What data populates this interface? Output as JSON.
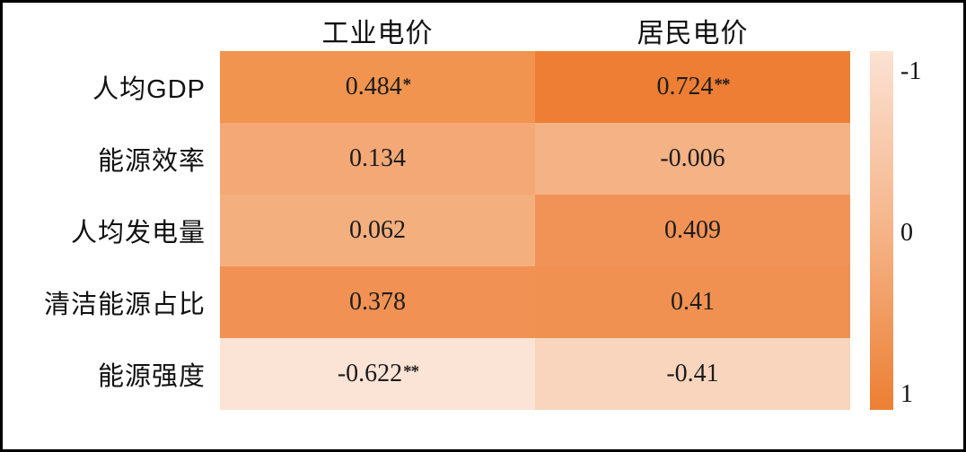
{
  "chart_data": {
    "type": "heatmap",
    "title": "",
    "columns": [
      "工业电价",
      "居民电价"
    ],
    "rows": [
      "人均GDP",
      "能源效率",
      "人均发电量",
      "清洁能源占比",
      "能源强度"
    ],
    "value_range": [
      -1,
      1
    ],
    "cells": [
      [
        {
          "value": 0.484,
          "label": "0.484",
          "sig": "*",
          "color": "#F0944F"
        },
        {
          "value": 0.724,
          "label": "0.724",
          "sig": "**",
          "color": "#EE7E33"
        }
      ],
      [
        {
          "value": 0.134,
          "label": "0.134",
          "sig": "",
          "color": "#F3A876"
        },
        {
          "value": -0.006,
          "label": "-0.006",
          "sig": "",
          "color": "#F4B285"
        }
      ],
      [
        {
          "value": 0.062,
          "label": "0.062",
          "sig": "",
          "color": "#F4AF7F"
        },
        {
          "value": 0.409,
          "label": "0.409",
          "sig": "",
          "color": "#F19356"
        }
      ],
      [
        {
          "value": 0.378,
          "label": "0.378",
          "sig": "",
          "color": "#F19254"
        },
        {
          "value": 0.41,
          "label": "0.41",
          "sig": "",
          "color": "#F09152"
        }
      ],
      [
        {
          "value": -0.622,
          "label": "-0.622",
          "sig": "**",
          "color": "#FBE3D5"
        },
        {
          "value": -0.41,
          "label": "-0.41",
          "sig": "",
          "color": "#F8D5BC"
        }
      ]
    ],
    "colorbar": {
      "orientation": "vertical",
      "ticks": [
        "-1",
        "0",
        "1"
      ],
      "gradient_top": "#FBE2D3",
      "gradient_mid": "#F5B488",
      "gradient_bottom": "#EC7F33"
    }
  }
}
